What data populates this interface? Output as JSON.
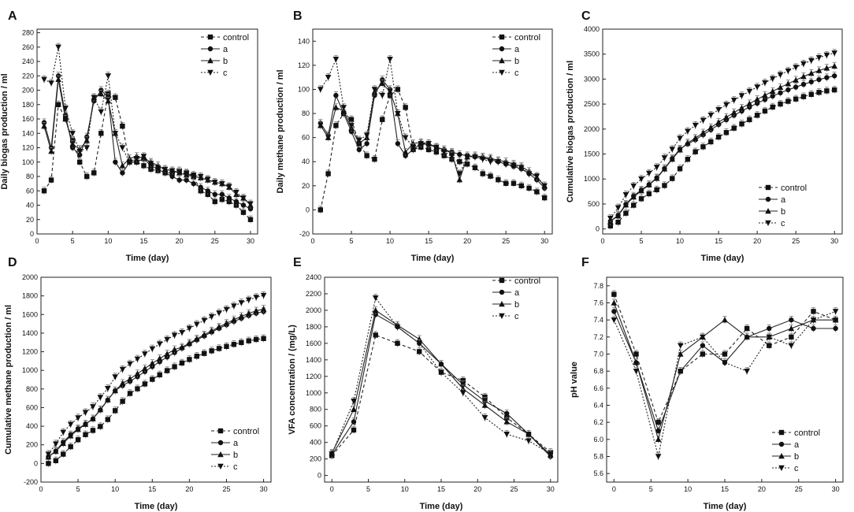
{
  "figure": {
    "panels": [
      {
        "id": "A",
        "label": "A",
        "title": "",
        "xlabel": "Time (day)",
        "ylabel": "Daily biogas production / ml"
      },
      {
        "id": "B",
        "label": "B",
        "title": "",
        "xlabel": "Time (day)",
        "ylabel": "Daily methane production / ml"
      },
      {
        "id": "C",
        "label": "C",
        "title": "",
        "xlabel": "Time (day)",
        "ylabel": "Cumulative biogas production / ml"
      },
      {
        "id": "D",
        "label": "D",
        "title": "",
        "xlabel": "Time (day)",
        "ylabel": "Cumulative methane production / ml"
      },
      {
        "id": "E",
        "label": "E",
        "title": "",
        "xlabel": "Time (day)",
        "ylabel": "VFA concentration / (mg/L)"
      },
      {
        "id": "F",
        "label": "F",
        "title": "",
        "xlabel": "Time (day)",
        "ylabel": "pH value"
      }
    ]
  },
  "chart_data": [
    {
      "panel": "A",
      "type": "line",
      "title": "",
      "xlabel": "Time (day)",
      "ylabel": "Daily biogas production / ml",
      "xlim": [
        0,
        31
      ],
      "ylim": [
        0,
        285
      ],
      "xticks": [
        0,
        5,
        10,
        15,
        20,
        25,
        30
      ],
      "yticks": [
        0,
        20,
        40,
        60,
        80,
        100,
        120,
        140,
        160,
        180,
        200,
        220,
        240,
        260,
        280
      ],
      "legend_position": "top-right",
      "x": [
        1,
        2,
        3,
        4,
        5,
        6,
        7,
        8,
        9,
        10,
        11,
        12,
        13,
        14,
        15,
        16,
        17,
        18,
        19,
        20,
        21,
        22,
        23,
        24,
        25,
        26,
        27,
        28,
        29,
        30
      ],
      "series": [
        {
          "name": "control",
          "marker": "square",
          "values": [
            60,
            75,
            180,
            160,
            130,
            100,
            80,
            85,
            140,
            195,
            190,
            150,
            100,
            100,
            95,
            90,
            88,
            85,
            85,
            88,
            85,
            80,
            60,
            55,
            45,
            48,
            45,
            40,
            30,
            20
          ]
        },
        {
          "name": "a",
          "marker": "circle",
          "values": [
            155,
            120,
            220,
            165,
            120,
            110,
            135,
            185,
            200,
            190,
            100,
            85,
            100,
            100,
            105,
            95,
            90,
            85,
            80,
            75,
            75,
            70,
            65,
            60,
            55,
            55,
            50,
            45,
            40,
            35
          ]
        },
        {
          "name": "b",
          "marker": "triangle-up",
          "values": [
            150,
            115,
            215,
            160,
            125,
            118,
            130,
            190,
            195,
            185,
            140,
            95,
            105,
            108,
            105,
            100,
            95,
            90,
            88,
            85,
            82,
            80,
            78,
            75,
            72,
            70,
            65,
            55,
            50,
            40
          ]
        },
        {
          "name": "c",
          "marker": "triangle-down",
          "values": [
            215,
            210,
            260,
            175,
            140,
            115,
            120,
            190,
            170,
            220,
            140,
            120,
            100,
            105,
            108,
            98,
            92,
            90,
            88,
            86,
            84,
            82,
            80,
            76,
            72,
            70,
            66,
            58,
            50,
            42
          ]
        }
      ]
    },
    {
      "panel": "B",
      "type": "line",
      "title": "",
      "xlabel": "Time (day)",
      "ylabel": "Daily methane production / ml",
      "xlim": [
        0,
        31
      ],
      "ylim": [
        -20,
        150
      ],
      "xticks": [
        0,
        5,
        10,
        15,
        20,
        25,
        30
      ],
      "yticks": [
        -20,
        0,
        20,
        40,
        60,
        80,
        100,
        120,
        140
      ],
      "legend_position": "top-right",
      "x": [
        1,
        2,
        3,
        4,
        5,
        6,
        7,
        8,
        9,
        10,
        11,
        12,
        13,
        14,
        15,
        16,
        17,
        18,
        19,
        20,
        21,
        22,
        23,
        24,
        25,
        26,
        27,
        28,
        29,
        30
      ],
      "series": [
        {
          "name": "control",
          "marker": "square",
          "values": [
            0,
            30,
            70,
            80,
            75,
            55,
            45,
            42,
            75,
            95,
            100,
            85,
            50,
            52,
            50,
            48,
            45,
            42,
            40,
            38,
            35,
            30,
            28,
            25,
            22,
            22,
            20,
            18,
            15,
            10
          ]
        },
        {
          "name": "a",
          "marker": "circle",
          "values": [
            72,
            62,
            95,
            80,
            65,
            50,
            55,
            95,
            108,
            100,
            55,
            45,
            50,
            55,
            54,
            52,
            50,
            48,
            46,
            45,
            44,
            43,
            42,
            40,
            38,
            36,
            34,
            30,
            25,
            18
          ]
        },
        {
          "name": "b",
          "marker": "triangle-up",
          "values": [
            70,
            60,
            85,
            82,
            68,
            55,
            60,
            98,
            105,
            98,
            80,
            48,
            55,
            56,
            55,
            52,
            50,
            47,
            25,
            44,
            45,
            44,
            43,
            41,
            40,
            38,
            36,
            32,
            27,
            20
          ]
        },
        {
          "name": "c",
          "marker": "triangle-down",
          "values": [
            100,
            110,
            125,
            85,
            70,
            58,
            62,
            100,
            95,
            125,
            80,
            60,
            52,
            55,
            55,
            52,
            48,
            45,
            30,
            44,
            44,
            42,
            40,
            40,
            38,
            37,
            35,
            30,
            28,
            20
          ]
        }
      ]
    },
    {
      "panel": "C",
      "type": "line",
      "title": "",
      "xlabel": "Time (day)",
      "ylabel": "Cumulative biogas production / ml",
      "xlim": [
        0,
        31
      ],
      "ylim": [
        -100,
        4000
      ],
      "xticks": [
        0,
        5,
        10,
        15,
        20,
        25,
        30
      ],
      "yticks": [
        0,
        500,
        1000,
        1500,
        2000,
        2500,
        3000,
        3500,
        4000
      ],
      "legend_position": "bottom-right",
      "x": [
        1,
        2,
        3,
        4,
        5,
        6,
        7,
        8,
        9,
        10,
        11,
        12,
        13,
        14,
        15,
        16,
        17,
        18,
        19,
        20,
        21,
        22,
        23,
        24,
        25,
        26,
        27,
        28,
        29,
        30
      ],
      "series": [
        {
          "name": "control",
          "marker": "square",
          "values": [
            60,
            135,
            315,
            475,
            605,
            705,
            785,
            870,
            1010,
            1205,
            1395,
            1545,
            1645,
            1745,
            1840,
            1930,
            2018,
            2103,
            2188,
            2276,
            2361,
            2441,
            2501,
            2556,
            2601,
            2649,
            2694,
            2734,
            2764,
            2784
          ]
        },
        {
          "name": "a",
          "marker": "circle",
          "values": [
            155,
            275,
            495,
            660,
            780,
            890,
            1025,
            1210,
            1410,
            1600,
            1700,
            1785,
            1885,
            1985,
            2090,
            2185,
            2275,
            2360,
            2440,
            2515,
            2590,
            2660,
            2725,
            2785,
            2840,
            2895,
            2945,
            2990,
            3030,
            3065
          ]
        },
        {
          "name": "b",
          "marker": "triangle-up",
          "values": [
            150,
            265,
            480,
            640,
            765,
            883,
            1013,
            1203,
            1398,
            1583,
            1723,
            1818,
            1923,
            2031,
            2136,
            2236,
            2331,
            2421,
            2509,
            2594,
            2676,
            2756,
            2834,
            2909,
            2981,
            3051,
            3116,
            3171,
            3221,
            3261
          ]
        },
        {
          "name": "c",
          "marker": "triangle-down",
          "values": [
            215,
            425,
            685,
            860,
            1000,
            1115,
            1235,
            1425,
            1595,
            1815,
            1955,
            2075,
            2175,
            2280,
            2388,
            2486,
            2578,
            2668,
            2756,
            2842,
            2926,
            3008,
            3088,
            3164,
            3236,
            3306,
            3372,
            3430,
            3480,
            3522
          ]
        }
      ]
    },
    {
      "panel": "D",
      "type": "line",
      "title": "",
      "xlabel": "Time (day)",
      "ylabel": "Cumulative methane production / ml",
      "xlim": [
        0,
        31
      ],
      "ylim": [
        -200,
        2000
      ],
      "xticks": [
        0,
        5,
        10,
        15,
        20,
        25,
        30
      ],
      "yticks": [
        -200,
        0,
        200,
        400,
        600,
        800,
        1000,
        1200,
        1400,
        1600,
        1800,
        2000
      ],
      "legend_position": "bottom-right",
      "x": [
        1,
        2,
        3,
        4,
        5,
        6,
        7,
        8,
        9,
        10,
        11,
        12,
        13,
        14,
        15,
        16,
        17,
        18,
        19,
        20,
        21,
        22,
        23,
        24,
        25,
        26,
        27,
        28,
        29,
        30
      ],
      "series": [
        {
          "name": "control",
          "marker": "square",
          "values": [
            0,
            30,
            100,
            180,
            255,
            310,
            355,
            397,
            472,
            567,
            667,
            752,
            802,
            854,
            904,
            952,
            997,
            1039,
            1079,
            1117,
            1152,
            1182,
            1210,
            1235,
            1257,
            1279,
            1299,
            1317,
            1332,
            1342
          ]
        },
        {
          "name": "a",
          "marker": "circle",
          "values": [
            72,
            134,
            229,
            309,
            374,
            424,
            479,
            574,
            682,
            782,
            837,
            882,
            932,
            987,
            1041,
            1093,
            1143,
            1191,
            1237,
            1282,
            1326,
            1369,
            1411,
            1451,
            1489,
            1525,
            1559,
            1589,
            1614,
            1632
          ]
        },
        {
          "name": "b",
          "marker": "triangle-up",
          "values": [
            70,
            130,
            215,
            297,
            365,
            420,
            480,
            578,
            683,
            781,
            861,
            909,
            964,
            1020,
            1075,
            1127,
            1177,
            1224,
            1249,
            1293,
            1338,
            1382,
            1425,
            1466,
            1506,
            1544,
            1580,
            1612,
            1639,
            1659
          ]
        },
        {
          "name": "c",
          "marker": "triangle-down",
          "values": [
            100,
            210,
            335,
            420,
            490,
            548,
            610,
            710,
            805,
            930,
            1010,
            1070,
            1122,
            1177,
            1232,
            1284,
            1332,
            1377,
            1407,
            1451,
            1495,
            1537,
            1577,
            1617,
            1655,
            1692,
            1727,
            1757,
            1785,
            1805
          ]
        }
      ]
    },
    {
      "panel": "E",
      "type": "line",
      "title": "",
      "xlabel": "Time (day)",
      "ylabel": "VFA concentration / (mg/L)",
      "xlim": [
        -1,
        31
      ],
      "ylim": [
        -80,
        2400
      ],
      "xticks": [
        0,
        5,
        10,
        15,
        20,
        25,
        30
      ],
      "yticks": [
        0,
        200,
        400,
        600,
        800,
        1000,
        1200,
        1400,
        1600,
        1800,
        2000,
        2200,
        2400
      ],
      "legend_position": "top-right",
      "x": [
        0,
        3,
        6,
        9,
        12,
        15,
        18,
        21,
        24,
        27,
        30
      ],
      "series": [
        {
          "name": "control",
          "marker": "square",
          "values": [
            240,
            550,
            1700,
            1600,
            1500,
            1250,
            1150,
            950,
            700,
            500,
            280
          ]
        },
        {
          "name": "a",
          "marker": "circle",
          "values": [
            250,
            650,
            1950,
            1800,
            1600,
            1350,
            1100,
            900,
            750,
            500,
            230
          ]
        },
        {
          "name": "b",
          "marker": "triangle-up",
          "values": [
            270,
            800,
            2000,
            1820,
            1650,
            1350,
            1050,
            850,
            650,
            500,
            250
          ]
        },
        {
          "name": "c",
          "marker": "triangle-down",
          "values": [
            260,
            900,
            2150,
            1800,
            1600,
            1250,
            1000,
            700,
            500,
            420,
            260
          ]
        }
      ]
    },
    {
      "panel": "F",
      "type": "line",
      "title": "",
      "xlabel": "Time (day)",
      "ylabel": "pH value",
      "xlim": [
        -1,
        31
      ],
      "ylim": [
        5.5,
        7.9
      ],
      "xticks": [
        0,
        5,
        10,
        15,
        20,
        25,
        30
      ],
      "yticks": [
        5.6,
        5.8,
        6.0,
        6.2,
        6.4,
        6.6,
        6.8,
        7.0,
        7.2,
        7.4,
        7.6,
        7.8
      ],
      "legend_position": "bottom-right",
      "x": [
        0,
        3,
        6,
        9,
        12,
        15,
        18,
        21,
        24,
        27,
        30
      ],
      "series": [
        {
          "name": "control",
          "marker": "square",
          "values": [
            7.7,
            7.0,
            6.2,
            6.8,
            7.0,
            7.0,
            7.3,
            7.1,
            7.2,
            7.5,
            7.4
          ]
        },
        {
          "name": "a",
          "marker": "circle",
          "values": [
            7.5,
            6.9,
            6.1,
            6.8,
            7.1,
            6.9,
            7.2,
            7.3,
            7.4,
            7.3,
            7.3
          ]
        },
        {
          "name": "b",
          "marker": "triangle-up",
          "values": [
            7.6,
            6.9,
            6.0,
            7.0,
            7.2,
            7.4,
            7.2,
            7.2,
            7.3,
            7.4,
            7.4
          ]
        },
        {
          "name": "c",
          "marker": "triangle-down",
          "values": [
            7.4,
            6.8,
            5.8,
            7.1,
            7.2,
            6.9,
            6.8,
            7.2,
            7.1,
            7.4,
            7.5
          ]
        }
      ]
    }
  ]
}
